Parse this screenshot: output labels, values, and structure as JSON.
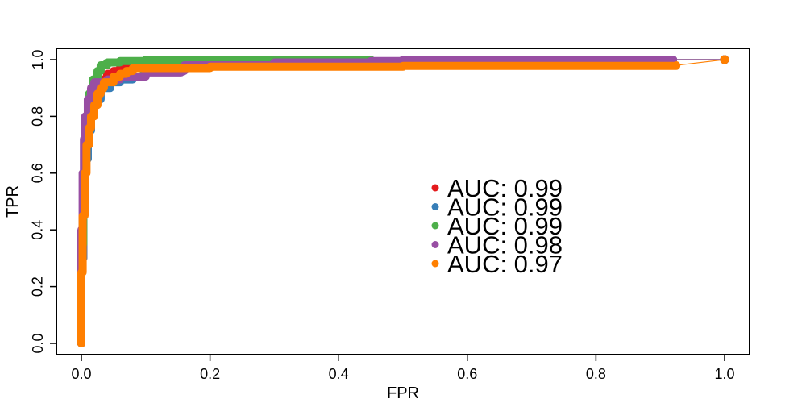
{
  "chart_data": {
    "type": "line",
    "title": "",
    "xlabel": "FPR",
    "ylabel": "TPR",
    "xlim": [
      0,
      1
    ],
    "ylim": [
      0,
      1
    ],
    "x_ticks": [
      0.0,
      0.2,
      0.4,
      0.6,
      0.8,
      1.0
    ],
    "x_tick_labels": [
      "0.0",
      "0.2",
      "0.4",
      "0.6",
      "0.8",
      "1.0"
    ],
    "y_ticks": [
      0.0,
      0.2,
      0.4,
      0.6,
      0.8,
      1.0
    ],
    "y_tick_labels": [
      "0.0",
      "0.2",
      "0.4",
      "0.6",
      "0.8",
      "1.0"
    ],
    "grid": false,
    "legend_position": "center-right",
    "series": [
      {
        "color": "#e41a1c",
        "legend": "AUC: 0.99",
        "points": [
          [
            0,
            0
          ],
          [
            0,
            0.3
          ],
          [
            0.003,
            0.55
          ],
          [
            0.005,
            0.68
          ],
          [
            0.008,
            0.75
          ],
          [
            0.012,
            0.8
          ],
          [
            0.015,
            0.84
          ],
          [
            0.02,
            0.87
          ],
          [
            0.025,
            0.9
          ],
          [
            0.03,
            0.93
          ],
          [
            0.04,
            0.95
          ],
          [
            0.05,
            0.96
          ],
          [
            0.06,
            0.97
          ],
          [
            0.08,
            0.98
          ],
          [
            0.15,
            0.985
          ],
          [
            0.3,
            0.99
          ],
          [
            0.5,
            0.995
          ],
          [
            0.7,
            1.0
          ],
          [
            0.92,
            1.0
          ],
          [
            1,
            1
          ]
        ]
      },
      {
        "color": "#377eb8",
        "legend": "AUC: 0.99",
        "points": [
          [
            0,
            0
          ],
          [
            0,
            0.3
          ],
          [
            0.003,
            0.5
          ],
          [
            0.006,
            0.65
          ],
          [
            0.01,
            0.75
          ],
          [
            0.015,
            0.82
          ],
          [
            0.02,
            0.86
          ],
          [
            0.03,
            0.9
          ],
          [
            0.045,
            0.92
          ],
          [
            0.06,
            0.93
          ],
          [
            0.08,
            0.94
          ],
          [
            0.095,
            0.945
          ],
          [
            0.1,
            0.97
          ],
          [
            0.15,
            0.98
          ],
          [
            0.3,
            0.99
          ],
          [
            0.5,
            0.995
          ],
          [
            0.7,
            1.0
          ],
          [
            0.92,
            1.0
          ],
          [
            1,
            1
          ]
        ]
      },
      {
        "color": "#4daf4a",
        "legend": "AUC: 0.99",
        "points": [
          [
            0,
            0
          ],
          [
            0,
            0.35
          ],
          [
            0.003,
            0.6
          ],
          [
            0.005,
            0.7
          ],
          [
            0.008,
            0.8
          ],
          [
            0.012,
            0.88
          ],
          [
            0.018,
            0.93
          ],
          [
            0.025,
            0.96
          ],
          [
            0.03,
            0.98
          ],
          [
            0.04,
            0.99
          ],
          [
            0.06,
            0.995
          ],
          [
            0.1,
            1.0
          ],
          [
            0.45,
            1.0
          ],
          [
            1,
            1
          ]
        ]
      },
      {
        "color": "#984ea3",
        "legend": "AUC: 0.98",
        "points": [
          [
            0,
            0
          ],
          [
            0,
            0.4
          ],
          [
            0.002,
            0.6
          ],
          [
            0.004,
            0.72
          ],
          [
            0.006,
            0.8
          ],
          [
            0.01,
            0.86
          ],
          [
            0.015,
            0.9
          ],
          [
            0.02,
            0.92
          ],
          [
            0.04,
            0.93
          ],
          [
            0.06,
            0.94
          ],
          [
            0.1,
            0.955
          ],
          [
            0.155,
            0.96
          ],
          [
            0.16,
            0.98
          ],
          [
            0.3,
            0.99
          ],
          [
            0.45,
            0.995
          ],
          [
            0.5,
            1.0
          ],
          [
            0.92,
            1.0
          ],
          [
            1,
            1
          ]
        ]
      },
      {
        "color": "#ff7f00",
        "legend": "AUC: 0.97",
        "points": [
          [
            0,
            0
          ],
          [
            0,
            0.25
          ],
          [
            0.002,
            0.45
          ],
          [
            0.005,
            0.6
          ],
          [
            0.008,
            0.7
          ],
          [
            0.012,
            0.76
          ],
          [
            0.015,
            0.8
          ],
          [
            0.02,
            0.84
          ],
          [
            0.025,
            0.88
          ],
          [
            0.03,
            0.9
          ],
          [
            0.035,
            0.92
          ],
          [
            0.05,
            0.94
          ],
          [
            0.06,
            0.95
          ],
          [
            0.07,
            0.96
          ],
          [
            0.08,
            0.97
          ],
          [
            0.2,
            0.975
          ],
          [
            0.5,
            0.978
          ],
          [
            0.925,
            0.98
          ],
          [
            1,
            1
          ]
        ]
      }
    ]
  }
}
